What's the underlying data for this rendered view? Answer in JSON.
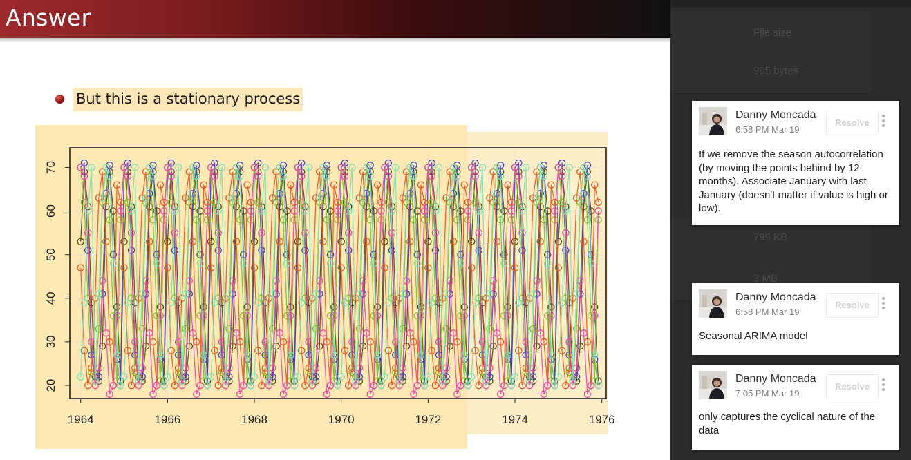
{
  "slide": {
    "title": "Answer",
    "bullet": "But this is a stationary process"
  },
  "file_panel": {
    "header": "File size",
    "rows": [
      "905 bytes",
      "799 KB",
      "3 MB"
    ]
  },
  "comments": [
    {
      "author": "Danny Moncada",
      "time": "6:58 PM Mar 19",
      "resolve_label": "Resolve",
      "text": "If we remove the season autocorrelation (by moving the points behind by 12 months). Associate January with last January (doesn't matter if value is high or low)."
    },
    {
      "author": "Danny Moncada",
      "time": "6:58 PM Mar 19",
      "resolve_label": "Resolve",
      "text": "Seasonal ARIMA model"
    },
    {
      "author": "Danny Moncada",
      "time": "7:05 PM Mar 19",
      "resolve_label": "Resolve",
      "text": "only captures the cyclical nature of the data"
    }
  ],
  "chart_data": {
    "type": "line",
    "title": "",
    "xlabel": "",
    "ylabel": "",
    "xlim": [
      1963.75,
      1976.1
    ],
    "ylim": [
      17.0,
      74.5
    ],
    "x_ticks": [
      1964,
      1966,
      1968,
      1970,
      1972,
      1974,
      1976
    ],
    "y_ticks": [
      20,
      30,
      40,
      50,
      60,
      70
    ],
    "grid": true,
    "markers": "open-circle",
    "period_months": 12,
    "x_start": 1964.0,
    "x_end": 1975.92,
    "series": [
      {
        "color": "#5a4a0a",
        "phase_months": 0.0,
        "values": [
          53.0,
          69.0,
          61.0,
          39.0,
          22.0,
          21.0,
          29.0,
          61.0,
          69.0,
          60.0,
          38.0,
          21.0
        ]
      },
      {
        "color": "#4040c0",
        "phase_months": 0.4,
        "values": [
          70.0,
          71.0,
          51.0,
          27.0,
          21.0,
          22.0,
          41.0,
          64.0,
          70.5,
          50.0,
          26.0,
          20.0
        ]
      },
      {
        "color": "#7cc22a",
        "phase_months": 0.8,
        "values": [
          58.0,
          70.0,
          62.0,
          40.0,
          23.0,
          21.0,
          33.0,
          62.0,
          70.0,
          58.0,
          36.0,
          21.0
        ]
      },
      {
        "color": "#e05a20",
        "phase_months": 1.6,
        "values": [
          66.0,
          62.0,
          47.0,
          28.0,
          20.0,
          24.0,
          40.0,
          63.0,
          69.0,
          53.0,
          30.0,
          20.0
        ]
      },
      {
        "color": "#e84aa8",
        "phase_months": 5.8,
        "values": [
          44.0,
          32.0,
          18.0,
          20.0,
          36.0,
          60.0,
          70.0,
          68.0,
          55.0,
          30.0,
          20.0,
          24.0
        ]
      },
      {
        "color": "#7fe0b8",
        "phase_months": 8.4,
        "values": [
          21.0,
          41.0,
          63.0,
          70.0,
          68.0,
          48.0,
          27.0,
          20.0,
          22.0,
          39.0,
          60.0,
          70.0
        ]
      }
    ]
  }
}
